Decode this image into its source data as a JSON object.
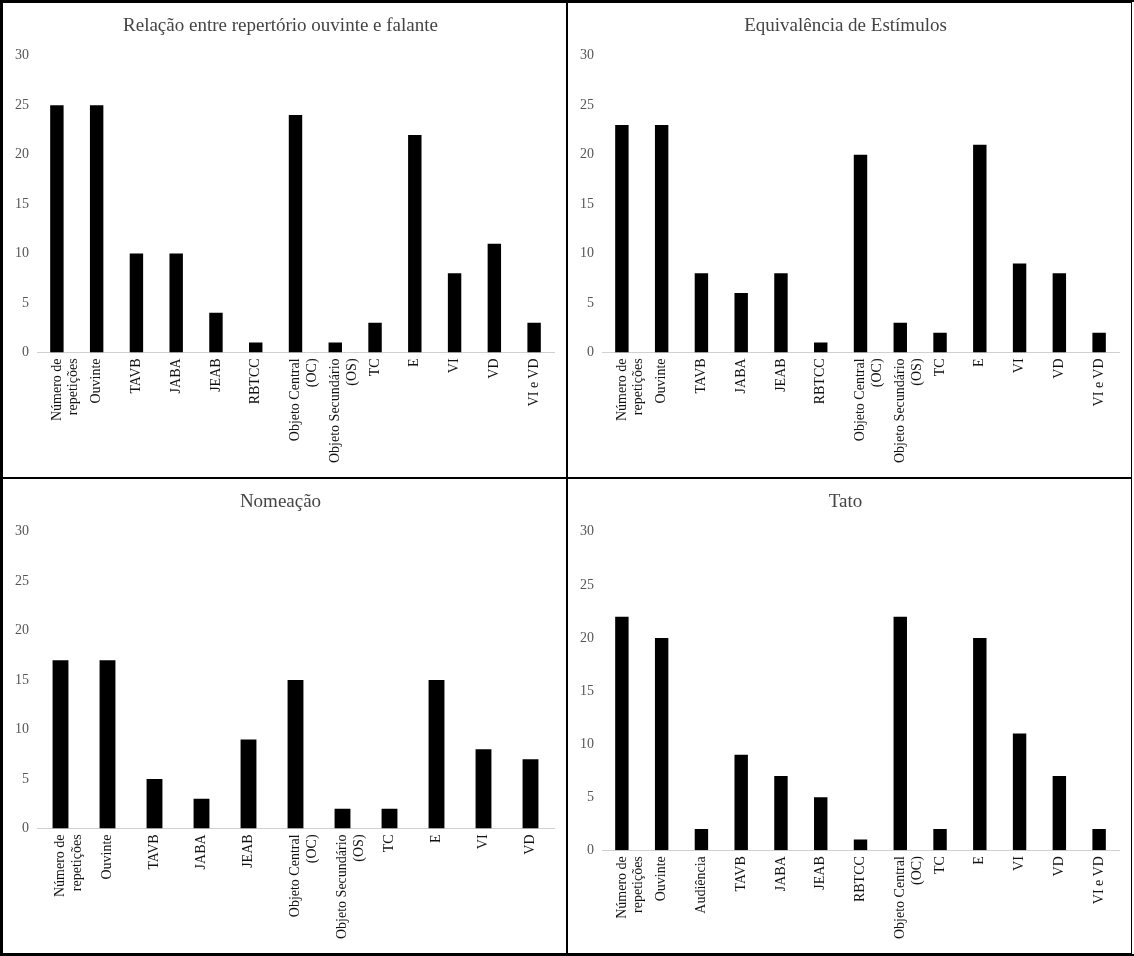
{
  "chart_data": [
    {
      "type": "bar",
      "title": "Relação entre repertório ouvinte e falante",
      "categories": [
        "Número de repetições",
        "Ouvinte",
        "TAVB",
        "JABA",
        "JEAB",
        "RBTCC",
        "Objeto Central (OC)",
        "Objeto Secundário (OS)",
        "TC",
        "E",
        "VI",
        "VD",
        "VI e VD"
      ],
      "values": [
        25,
        25,
        10,
        10,
        4,
        1,
        24,
        1,
        3,
        22,
        8,
        11,
        3
      ],
      "color": "#000000",
      "ylim": [
        0,
        30
      ],
      "yticks": [
        0,
        5,
        10,
        15,
        20,
        25,
        30
      ],
      "grid": false,
      "legend": false
    },
    {
      "type": "bar",
      "title": "Equivalência de Estímulos",
      "categories": [
        "Número de repetições",
        "Ouvinte",
        "TAVB",
        "JABA",
        "JEAB",
        "RBTCC",
        "Objeto Central (OC)",
        "Objeto Secundário (OS)",
        "TC",
        "E",
        "VI",
        "VD",
        "VI e VD"
      ],
      "values": [
        23,
        23,
        8,
        6,
        8,
        1,
        20,
        3,
        2,
        21,
        9,
        8,
        2
      ],
      "color": "#000000",
      "ylim": [
        0,
        30
      ],
      "yticks": [
        0,
        5,
        10,
        15,
        20,
        25,
        30
      ],
      "grid": false,
      "legend": false
    },
    {
      "type": "bar",
      "title": "Nomeação",
      "categories": [
        "Número de repetições",
        "Ouvinte",
        "TAVB",
        "JABA",
        "JEAB",
        "Objeto Central (OC)",
        "Objeto Secundário (OS)",
        "TC",
        "E",
        "VI",
        "VD"
      ],
      "values": [
        17,
        17,
        5,
        3,
        9,
        15,
        2,
        2,
        15,
        8,
        7
      ],
      "color": "#000000",
      "ylim": [
        0,
        30
      ],
      "yticks": [
        0,
        5,
        10,
        15,
        20,
        25,
        30
      ],
      "grid": false,
      "legend": false
    },
    {
      "type": "bar",
      "title": "Tato",
      "categories": [
        "Número de repetições",
        "Ouvinte",
        "Audiência",
        "TAVB",
        "JABA",
        "JEAB",
        "RBTCC",
        "Objeto Central (OC)",
        "TC",
        "E",
        "VI",
        "VD",
        "VI e VD"
      ],
      "values": [
        22,
        20,
        2,
        9,
        7,
        5,
        1,
        22,
        2,
        20,
        11,
        7,
        2
      ],
      "color": "#000000",
      "ylim": [
        0,
        30
      ],
      "yticks": [
        0,
        5,
        10,
        15,
        20,
        25,
        30
      ],
      "grid": false,
      "legend": false
    }
  ]
}
